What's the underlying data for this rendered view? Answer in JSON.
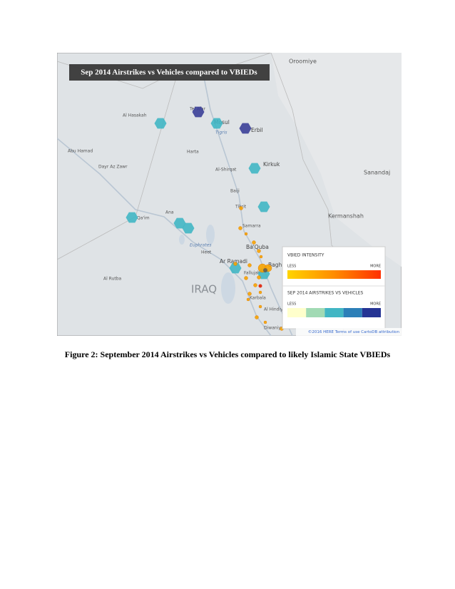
{
  "figure": {
    "map_title": "Sep 2014 Airstrikes vs Vehicles compared to VBIEDs",
    "country_label": "IRAQ",
    "places": [
      "Al Hasakah",
      "Tel Afar",
      "Mosul",
      "Tigris",
      "Erbil",
      "Kirkuk",
      "Al-Shirqat",
      "Baiji",
      "Tikrit",
      "Harta",
      "Dayr Az Zawr",
      "Abu Hamad",
      "Ana",
      "Qa'im",
      "Samarra",
      "Ba'Quba",
      "Heet",
      "Euphrates",
      "Ar Ramadi",
      "Fallujah",
      "Baghdad",
      "Al Rutba",
      "Karbala",
      "Al Hindiya",
      "Diwaniya",
      "Oroomiye",
      "Sanandaj",
      "Kermanshah"
    ],
    "legend": {
      "vbied_title": "VBIED INTENSITY",
      "vbied_less": "LESS",
      "vbied_more": "MORE",
      "airstrike_title": "SEP 2014 AIRSTRIKES VS VEHICLES",
      "airstrike_less": "LESS",
      "airstrike_more": "MORE"
    },
    "attribution": "©2016 HERE Terms of use CartoDB attribution",
    "caption": "Figure 2: September 2014 Airstrikes vs Vehicles compared to likely Islamic State VBIEDs"
  }
}
